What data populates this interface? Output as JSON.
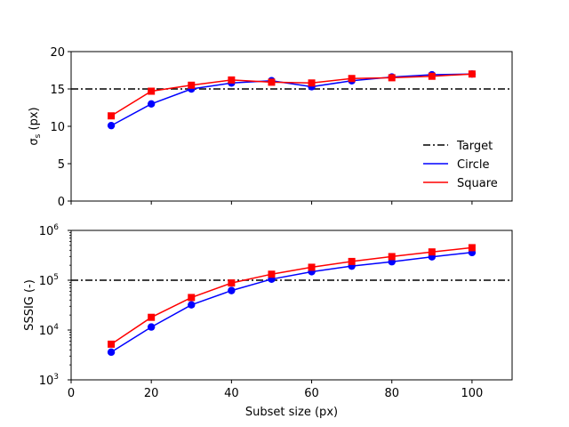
{
  "chart_data": [
    {
      "type": "line",
      "xlabel": "",
      "ylabel": "σs (px)",
      "ylabel_main": "σ",
      "ylabel_sub": "s",
      "ylabel_tail": " (px)",
      "xlim": [
        0,
        110
      ],
      "ylim": [
        0,
        20
      ],
      "yscale": "linear",
      "xticks": [
        0,
        20,
        40,
        60,
        80,
        100
      ],
      "yticks": [
        0,
        5,
        10,
        15,
        20
      ],
      "ytick_labels": [
        "0",
        "5",
        "10",
        "15",
        "20"
      ],
      "target": 15,
      "legend_position": "lower-right",
      "series": [
        {
          "name": "Target",
          "kind": "target",
          "color": "#000000"
        },
        {
          "name": "Circle",
          "marker": "circle",
          "color": "#0000ff",
          "x": [
            10,
            20,
            30,
            40,
            50,
            60,
            70,
            80,
            90,
            100
          ],
          "y": [
            10.1,
            13.0,
            15.0,
            15.8,
            16.1,
            15.3,
            16.1,
            16.6,
            16.9,
            17.0
          ]
        },
        {
          "name": "Square",
          "marker": "square",
          "color": "#ff0000",
          "x": [
            10,
            20,
            30,
            40,
            50,
            60,
            70,
            80,
            90,
            100
          ],
          "y": [
            11.4,
            14.7,
            15.5,
            16.2,
            15.9,
            15.8,
            16.4,
            16.5,
            16.7,
            17.0
          ]
        }
      ]
    },
    {
      "type": "line",
      "xlabel": "Subset size (px)",
      "ylabel": "SSSIG (-)",
      "xlim": [
        0,
        110
      ],
      "ylim": [
        1000,
        1000000
      ],
      "yscale": "log",
      "xticks": [
        0,
        20,
        40,
        60,
        80,
        100
      ],
      "xtick_labels": [
        "0",
        "20",
        "40",
        "60",
        "80",
        "100"
      ],
      "yticks": [
        1000,
        10000,
        100000,
        1000000
      ],
      "ytick_bases": [
        "10",
        "10",
        "10",
        "10"
      ],
      "ytick_exps": [
        "3",
        "4",
        "5",
        "6"
      ],
      "target": 100000,
      "series": [
        {
          "name": "Circle",
          "marker": "circle",
          "color": "#0000ff",
          "x": [
            10,
            20,
            30,
            40,
            50,
            60,
            70,
            80,
            90,
            100
          ],
          "y": [
            3600,
            11500,
            32000,
            62000,
            105000,
            148000,
            192000,
            235000,
            295000,
            360000
          ]
        },
        {
          "name": "Square",
          "marker": "square",
          "color": "#ff0000",
          "x": [
            10,
            20,
            30,
            40,
            50,
            60,
            70,
            80,
            90,
            100
          ],
          "y": [
            5200,
            18000,
            45000,
            88000,
            132000,
            182000,
            238000,
            298000,
            370000,
            450000
          ]
        }
      ]
    }
  ]
}
